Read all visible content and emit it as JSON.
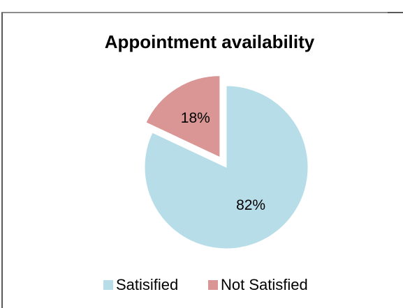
{
  "chart_data": {
    "type": "pie",
    "title": "Appointment availability",
    "categories": [
      "Satisified",
      "Not Satisfied"
    ],
    "values": [
      82,
      18
    ],
    "value_labels": [
      "82%",
      "18%"
    ],
    "colors": [
      "#b7dde8",
      "#d99694"
    ],
    "explode": [
      false,
      true
    ],
    "legend": "bottom"
  }
}
